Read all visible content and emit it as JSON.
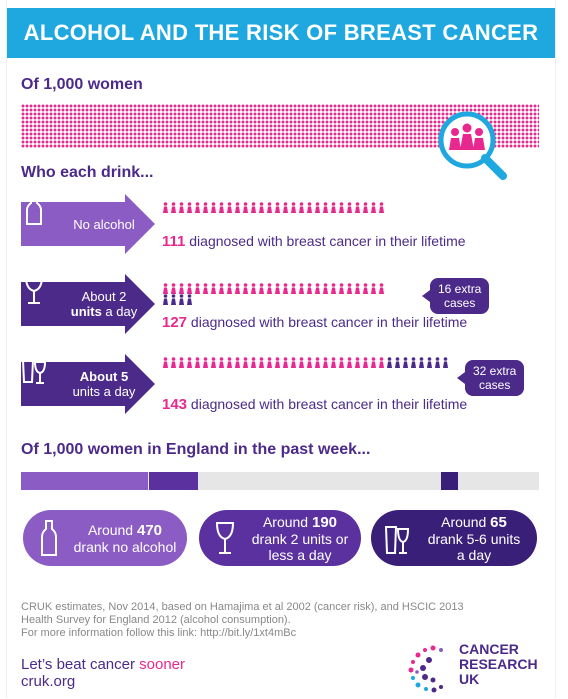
{
  "title": "ALCOHOL AND THE RISK OF BREAST CANCER",
  "section1": {
    "heading": "Of 1,000 women"
  },
  "section2": {
    "heading": "Who each drink...",
    "rows": [
      {
        "label_plain": "No alcohol",
        "diag_count": "111",
        "diag_text": "diagnosed with breast cancer in their lifetime",
        "base_people": 111,
        "extra_people": 0
      },
      {
        "label_line1": "About 2",
        "label_line2_bold": "units",
        "label_line2": " a day",
        "diag_count": "127",
        "diag_text": "diagnosed with breast cancer in their lifetime",
        "bubble_line1": "16 extra",
        "bubble_line2": "cases",
        "base_people": 111,
        "extra_people": 16
      },
      {
        "label_line1_bold": "About 5",
        "label_line2": "units a day",
        "diag_count": "143",
        "diag_text": "diagnosed with breast cancer in their lifetime",
        "bubble_line1": "32 extra",
        "bubble_line2": "cases",
        "base_people": 111,
        "extra_people": 32
      }
    ]
  },
  "section3": {
    "heading": "Of 1,000 women in England in the past week...",
    "bar": {
      "no_alcohol": 470,
      "two_units": 190,
      "five_six_units": 65,
      "total": 1000
    },
    "pills": [
      {
        "prefix": "Around ",
        "number": "470",
        "line2": "drank no alcohol"
      },
      {
        "prefix": "Around ",
        "number": "190",
        "line2": "drank 2 units or",
        "line3": "less a day"
      },
      {
        "prefix": "Around ",
        "number": "65",
        "line2": "drank 5-6 units",
        "line3": "a day"
      }
    ]
  },
  "footnote": {
    "line1": "CRUK estimates, Nov 2014, based on Hamajima et al 2002 (cancer risk), and HSCIC 2013",
    "line2": "Health Survey for England 2012 (alcohol consumption).",
    "line3": "For more information follow this link: http://bit.ly/1xt4mBc"
  },
  "slogan": {
    "text": "Let’s beat cancer ",
    "accent": "sooner"
  },
  "url": "cruk.org",
  "logo": {
    "line1": "CANCER",
    "line2": "RESEARCH",
    "line3": "UK"
  },
  "colors": {
    "pink": "#e8288f",
    "purple": "#4b2a8a",
    "light_purple": "#8b5cc4",
    "blue": "#1fa8e0"
  }
}
